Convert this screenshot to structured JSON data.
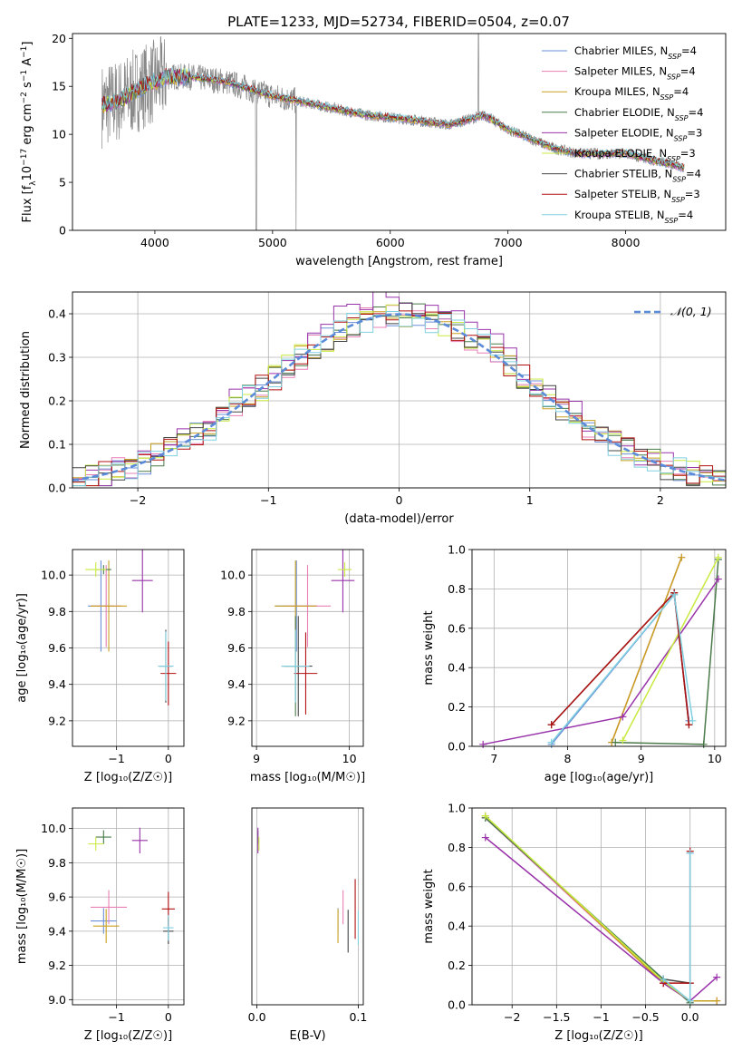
{
  "figure_title": "PLATE=1233, MJD=52734, FIBERID=0504, z=0.07",
  "legend_entries": [
    {
      "label": "Chabrier MILES, N",
      "sub": "SSP",
      "tail": "=4",
      "color": "#6a8fd8"
    },
    {
      "label": "Salpeter MILES, N",
      "sub": "SSP",
      "tail": "=4",
      "color": "#e87fb5"
    },
    {
      "label": "Kroupa MILES, N",
      "sub": "SSP",
      "tail": "=4",
      "color": "#c8a020"
    },
    {
      "label": "Chabrier ELODIE, N",
      "sub": "SSP",
      "tail": "=4",
      "color": "#4a7a4a"
    },
    {
      "label": "Salpeter ELODIE, N",
      "sub": "SSP",
      "tail": "=3",
      "color": "#9933aa"
    },
    {
      "label": "Kroupa ELODIE, N",
      "sub": "SSP",
      "tail": "=3",
      "color": "#c8ea40"
    },
    {
      "label": "Chabrier STELIB, N",
      "sub": "SSP",
      "tail": "=4",
      "color": "#444444"
    },
    {
      "label": "Salpeter STELIB, N",
      "sub": "SSP",
      "tail": "=3",
      "color": "#b01010"
    },
    {
      "label": "Kroupa STELIB, N",
      "sub": "SSP",
      "tail": "=4",
      "color": "#80d0e0"
    }
  ],
  "data_color": "#888888",
  "normal_label": "𝒩(0, 1)",
  "normal_color": "#5b8ad8",
  "chart_data": [
    {
      "id": "spectrum",
      "type": "line",
      "xlabel": "wavelength [Angstrom, rest frame]",
      "ylabel": "Flux [f",
      "ylabel_parts": [
        "Flux [f",
        "λ",
        "10",
        "−17",
        " erg cm",
        "−2",
        " s",
        "−1",
        " A",
        "−1",
        "]"
      ],
      "xlim": [
        3300,
        8850
      ],
      "ylim": [
        0,
        20.5
      ],
      "xticks": [
        4000,
        5000,
        6000,
        7000,
        8000
      ],
      "yticks": [
        0,
        5,
        10,
        15,
        20
      ],
      "grid": false,
      "legend_placement": "top-right",
      "approx_continuum": {
        "x": [
          3550,
          3700,
          3900,
          4100,
          4300,
          4600,
          5000,
          5400,
          5800,
          6200,
          6500,
          6800,
          7000,
          7200,
          7400,
          7600,
          8000,
          8500
        ],
        "y": [
          13,
          13.5,
          15,
          16,
          16,
          15.5,
          14,
          13,
          12,
          11.5,
          11,
          12,
          10.5,
          9.5,
          8.5,
          8,
          8,
          6.5
        ]
      }
    },
    {
      "id": "residuals",
      "type": "line",
      "xlabel": "(data-model)/error",
      "ylabel": "Normed distribution",
      "xlim": [
        -2.5,
        2.5
      ],
      "ylim": [
        0,
        0.45
      ],
      "xticks": [
        -2,
        -1,
        0,
        1,
        2
      ],
      "yticks": [
        0,
        0.1,
        0.2,
        0.3,
        0.4
      ],
      "grid": true,
      "legend_placement": "top-right",
      "bin_edges_start": -2.5,
      "bin_width": 0.1
    },
    {
      "id": "age_vs_Z",
      "type": "scatter",
      "xlabel": "Z [log₁₀(Z/Z☉)]",
      "ylabel": "age  [log₁₀(age/yr)]",
      "xlim": [
        -1.85,
        0.3
      ],
      "ylim": [
        9.06,
        10.14
      ],
      "xticks": [
        -1,
        0
      ],
      "yticks": [
        9.2,
        9.4,
        9.6,
        9.8,
        10.0
      ],
      "grid": true,
      "points": [
        {
          "series": "Chabrier MILES",
          "x": -1.3,
          "y": 9.83,
          "xerr": 0.5,
          "yerr": 0.5
        },
        {
          "series": "Salpeter MILES",
          "x": -1.2,
          "y": 9.83,
          "xerr": 0.6,
          "yerr": 0.45
        },
        {
          "series": "Kroupa MILES",
          "x": -1.15,
          "y": 9.83,
          "xerr": 0.7,
          "yerr": 0.5
        },
        {
          "series": "Chabrier ELODIE",
          "x": -1.25,
          "y": 10.03,
          "xerr": 0.3,
          "yerr": 0.05
        },
        {
          "series": "Salpeter ELODIE",
          "x": -0.5,
          "y": 9.97,
          "xerr": 0.4,
          "yerr": 0.35
        },
        {
          "series": "Kroupa ELODIE",
          "x": -1.4,
          "y": 10.03,
          "xerr": 0.4,
          "yerr": 0.08
        },
        {
          "series": "Chabrier STELIB",
          "x": -0.05,
          "y": 9.5,
          "xerr": 0.25,
          "yerr": 0.4
        },
        {
          "series": "Salpeter STELIB",
          "x": 0.0,
          "y": 9.46,
          "xerr": 0.3,
          "yerr": 0.35
        },
        {
          "series": "Kroupa STELIB",
          "x": -0.05,
          "y": 9.5,
          "xerr": 0.3,
          "yerr": 0.38
        }
      ]
    },
    {
      "id": "age_vs_mass",
      "type": "scatter",
      "xlabel": "mass [log₁₀(M/M☉)]",
      "ylabel": "",
      "xlim": [
        8.95,
        10.15
      ],
      "ylim": [
        9.06,
        10.14
      ],
      "xticks": [
        9,
        10
      ],
      "yticks": [
        9.2,
        9.4,
        9.6,
        9.8,
        10.0
      ],
      "grid": true,
      "points": [
        {
          "series": "Chabrier MILES",
          "x": 9.43,
          "y": 9.83,
          "xerr": 0.45,
          "yerr": 0.5
        },
        {
          "series": "Salpeter MILES",
          "x": 9.55,
          "y": 9.83,
          "xerr": 0.5,
          "yerr": 0.45
        },
        {
          "series": "Kroupa MILES",
          "x": 9.42,
          "y": 9.83,
          "xerr": 0.45,
          "yerr": 0.5
        },
        {
          "series": "Chabrier ELODIE",
          "x": 9.42,
          "y": 9.5,
          "xerr": 0.3,
          "yerr": 0.55
        },
        {
          "series": "Salpeter ELODIE",
          "x": 9.93,
          "y": 9.97,
          "xerr": 0.25,
          "yerr": 0.35
        },
        {
          "series": "Kroupa ELODIE",
          "x": 9.95,
          "y": 10.03,
          "xerr": 0.15,
          "yerr": 0.08
        },
        {
          "series": "Chabrier STELIB",
          "x": 9.45,
          "y": 9.5,
          "xerr": 0.3,
          "yerr": 0.55
        },
        {
          "series": "Salpeter STELIB",
          "x": 9.53,
          "y": 9.46,
          "xerr": 0.25,
          "yerr": 0.45
        },
        {
          "series": "Kroupa STELIB",
          "x": 9.42,
          "y": 9.5,
          "xerr": 0.3,
          "yerr": 0.4
        }
      ]
    },
    {
      "id": "weight_vs_age",
      "type": "line",
      "xlabel": "age  [log₁₀(age/yr)]",
      "ylabel": "mass weight",
      "xlim": [
        6.7,
        10.15
      ],
      "ylim": [
        0,
        1.0
      ],
      "xticks": [
        7,
        8,
        9,
        10
      ],
      "yticks": [
        0.0,
        0.2,
        0.4,
        0.6,
        0.8,
        1.0
      ],
      "grid": true,
      "series": [
        {
          "name": "Chabrier MILES",
          "x": [
            7.78,
            9.45,
            9.65
          ],
          "y": [
            0.01,
            0.77,
            0.13
          ]
        },
        {
          "name": "Salpeter MILES",
          "x": [
            8.6,
            9.55
          ],
          "y": [
            0.02,
            0.96
          ]
        },
        {
          "name": "Kroupa MILES",
          "x": [
            8.6,
            9.55
          ],
          "y": [
            0.02,
            0.96
          ]
        },
        {
          "name": "Chabrier ELODIE",
          "x": [
            8.65,
            9.85,
            10.05
          ],
          "y": [
            0.02,
            0.01,
            0.95
          ]
        },
        {
          "name": "Salpeter ELODIE",
          "x": [
            6.85,
            8.75,
            10.05
          ],
          "y": [
            0.01,
            0.15,
            0.85
          ]
        },
        {
          "name": "Kroupa ELODIE",
          "x": [
            8.75,
            10.05
          ],
          "y": [
            0.03,
            0.96
          ]
        },
        {
          "name": "Chabrier STELIB",
          "x": [
            7.78,
            9.45,
            9.65
          ],
          "y": [
            0.11,
            0.78,
            0.11
          ]
        },
        {
          "name": "Salpeter STELIB",
          "x": [
            7.78,
            9.45,
            9.65
          ],
          "y": [
            0.11,
            0.78,
            0.11
          ]
        },
        {
          "name": "Kroupa STELIB",
          "x": [
            7.78,
            9.45,
            9.7
          ],
          "y": [
            0.02,
            0.77,
            0.13
          ]
        }
      ]
    },
    {
      "id": "mass_vs_Z",
      "type": "scatter",
      "xlabel": "Z [log₁₀(Z/Z☉)]",
      "ylabel": "mass [log₁₀(M/M☉)]",
      "xlim": [
        -1.85,
        0.3
      ],
      "ylim": [
        8.97,
        10.12
      ],
      "xticks": [
        -1,
        0
      ],
      "yticks": [
        9.0,
        9.2,
        9.4,
        9.6,
        9.8,
        10.0
      ],
      "grid": true,
      "points": [
        {
          "series": "Chabrier MILES",
          "x": -1.25,
          "y": 9.46,
          "xerr": 0.5,
          "yerr": 0.15
        },
        {
          "series": "Salpeter MILES",
          "x": -1.15,
          "y": 9.54,
          "xerr": 0.7,
          "yerr": 0.2
        },
        {
          "series": "Kroupa MILES",
          "x": -1.2,
          "y": 9.43,
          "xerr": 0.5,
          "yerr": 0.2
        },
        {
          "series": "Chabrier ELODIE",
          "x": -1.25,
          "y": 9.95,
          "xerr": 0.3,
          "yerr": 0.08
        },
        {
          "series": "Salpeter ELODIE",
          "x": -0.55,
          "y": 9.93,
          "xerr": 0.3,
          "yerr": 0.15
        },
        {
          "series": "Kroupa ELODIE",
          "x": -1.4,
          "y": 9.91,
          "xerr": 0.3,
          "yerr": 0.08
        },
        {
          "series": "Chabrier STELIB",
          "x": 0.0,
          "y": 9.4,
          "xerr": 0.2,
          "yerr": 0.15
        },
        {
          "series": "Salpeter STELIB",
          "x": 0.0,
          "y": 9.53,
          "xerr": 0.25,
          "yerr": 0.2
        },
        {
          "series": "Kroupa STELIB",
          "x": 0.0,
          "y": 9.42,
          "xerr": 0.2,
          "yerr": 0.15
        }
      ]
    },
    {
      "id": "mass_vs_EBV",
      "type": "scatter",
      "xlabel": "E(B-V)",
      "ylabel": "",
      "xlim": [
        -0.005,
        0.105
      ],
      "ylim": [
        8.97,
        10.12
      ],
      "xticks": [
        0.0,
        0.1
      ],
      "grid": true,
      "points": [
        {
          "series": "Chabrier MILES",
          "x": 0.08,
          "y": 9.46,
          "yerr": 0.15
        },
        {
          "series": "Salpeter MILES",
          "x": 0.085,
          "y": 9.54,
          "yerr": 0.2
        },
        {
          "series": "Kroupa MILES",
          "x": 0.08,
          "y": 9.43,
          "yerr": 0.2
        },
        {
          "series": "Chabrier ELODIE",
          "x": 0.001,
          "y": 9.95,
          "yerr": 0.08
        },
        {
          "series": "Salpeter ELODIE",
          "x": 0.001,
          "y": 9.93,
          "yerr": 0.15
        },
        {
          "series": "Kroupa ELODIE",
          "x": 0.002,
          "y": 9.91,
          "yerr": 0.08
        },
        {
          "series": "Chabrier STELIB",
          "x": 0.09,
          "y": 9.4,
          "yerr": 0.25
        },
        {
          "series": "Salpeter STELIB",
          "x": 0.097,
          "y": 9.53,
          "yerr": 0.35
        },
        {
          "series": "Kroupa STELIB",
          "x": 0.1,
          "y": 9.42,
          "yerr": 0.2
        }
      ]
    },
    {
      "id": "weight_vs_Z",
      "type": "line",
      "xlabel": "Z [log₁₀(Z/Z☉)]",
      "ylabel": "mass weight",
      "xlim": [
        -2.45,
        0.4
      ],
      "ylim": [
        0,
        1.0
      ],
      "xticks": [
        -2.0,
        -1.5,
        -1.0,
        -0.5,
        0.0
      ],
      "yticks": [
        0.0,
        0.2,
        0.4,
        0.6,
        0.8,
        1.0
      ],
      "grid": true,
      "series": [
        {
          "name": "Chabrier MILES",
          "x": [
            -2.3,
            -0.3,
            0.0,
            0.0
          ],
          "y": [
            0.95,
            0.13,
            0.01,
            0.77
          ]
        },
        {
          "name": "Salpeter MILES",
          "x": [
            -2.3,
            -0.3,
            0.0,
            0.3
          ],
          "y": [
            0.95,
            0.11,
            0.02,
            0.02
          ]
        },
        {
          "name": "Kroupa MILES",
          "x": [
            -2.3,
            -0.3,
            0.0,
            0.3
          ],
          "y": [
            0.96,
            0.11,
            0.02,
            0.02
          ]
        },
        {
          "name": "Chabrier ELODIE",
          "x": [
            -2.3,
            -0.3,
            0.0
          ],
          "y": [
            0.95,
            0.13,
            0.01
          ]
        },
        {
          "name": "Salpeter ELODIE",
          "x": [
            -2.3,
            -0.3,
            0.0,
            0.3
          ],
          "y": [
            0.85,
            0.11,
            0.02,
            0.14
          ]
        },
        {
          "name": "Kroupa ELODIE",
          "x": [
            -2.3,
            -0.3,
            0.0
          ],
          "y": [
            0.96,
            0.12,
            0.02
          ]
        },
        {
          "name": "Chabrier STELIB",
          "x": [
            -0.3,
            0.0
          ],
          "y": [
            0.13,
            0.11
          ]
        },
        {
          "name": "Salpeter STELIB",
          "x": [
            -0.3,
            0.0,
            0.0
          ],
          "y": [
            0.11,
            0.11,
            0.78
          ]
        },
        {
          "name": "Kroupa STELIB",
          "x": [
            -0.3,
            0.0,
            0.0
          ],
          "y": [
            0.13,
            0.02,
            0.77
          ]
        }
      ]
    }
  ]
}
